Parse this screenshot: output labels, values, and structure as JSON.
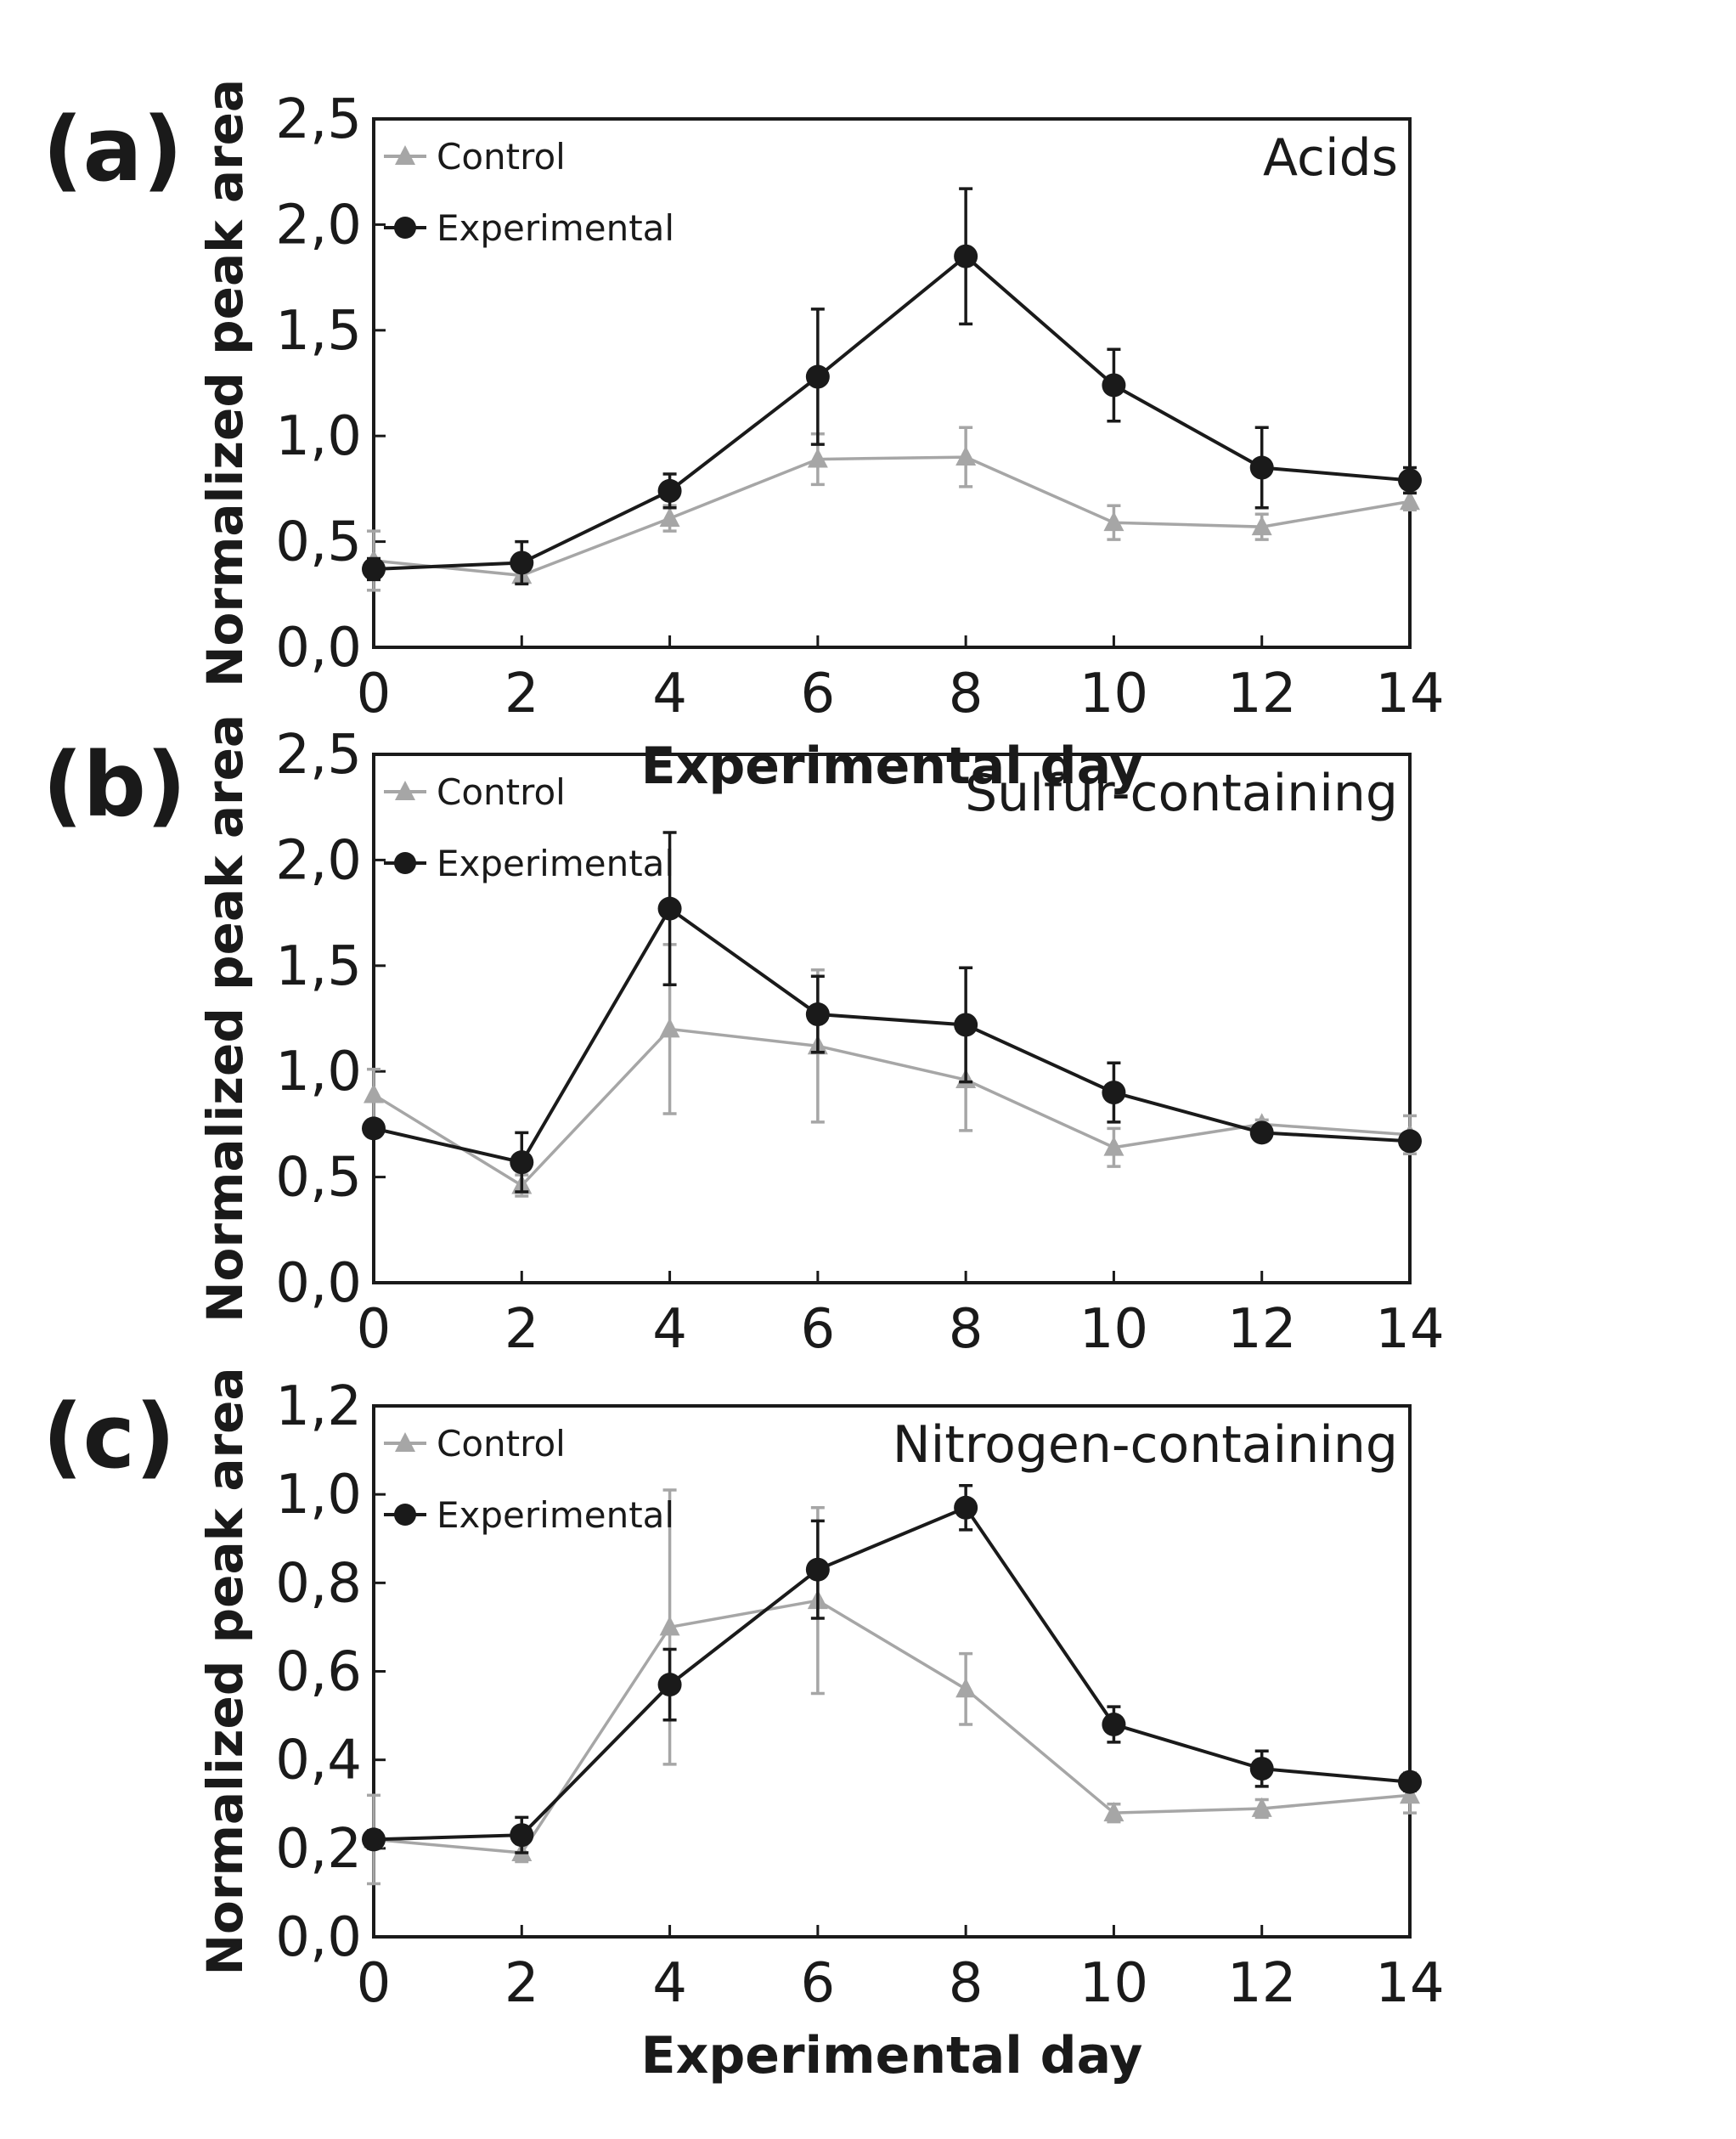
{
  "chart_data": [
    {
      "type": "line",
      "panel_label": "(a)",
      "title": "Acids",
      "xlabel": "Experimental day",
      "ylabel": "Normalized peak area",
      "x": [
        0,
        2,
        4,
        6,
        8,
        10,
        12,
        14
      ],
      "x_ticks": [
        "0",
        "2",
        "4",
        "6",
        "8",
        "10",
        "12",
        "14"
      ],
      "xlim": [
        0,
        14
      ],
      "ylim": [
        0,
        2.5
      ],
      "y_ticks": [
        "0,0",
        "0,5",
        "1,0",
        "1,5",
        "2,0",
        "2,5"
      ],
      "y_tick_values": [
        0,
        0.5,
        1.0,
        1.5,
        2.0,
        2.5
      ],
      "legend": "top-left",
      "series": [
        {
          "name": "Control",
          "color": "#a6a6a6",
          "marker": "triangle",
          "values": [
            0.41,
            0.34,
            0.61,
            0.89,
            0.9,
            0.59,
            0.57,
            0.69
          ],
          "errors": [
            0.14,
            0.03,
            0.06,
            0.12,
            0.14,
            0.08,
            0.06,
            0.04
          ]
        },
        {
          "name": "Experimental",
          "color": "#1a1a1a",
          "marker": "circle",
          "values": [
            0.37,
            0.4,
            0.74,
            1.28,
            1.85,
            1.24,
            0.85,
            0.79
          ],
          "errors": [
            0.05,
            0.1,
            0.08,
            0.32,
            0.32,
            0.17,
            0.19,
            0.06
          ]
        }
      ]
    },
    {
      "type": "line",
      "panel_label": "(b)",
      "title": "Sulfur-containing",
      "xlabel": "",
      "ylabel": "Normalized peak area",
      "x": [
        0,
        2,
        4,
        6,
        8,
        10,
        12,
        14
      ],
      "x_ticks": [
        "0",
        "2",
        "4",
        "6",
        "8",
        "10",
        "12",
        "14"
      ],
      "xlim": [
        0,
        14
      ],
      "ylim": [
        0,
        2.5
      ],
      "y_ticks": [
        "0,0",
        "0,5",
        "1,0",
        "1,5",
        "2,0",
        "2,5"
      ],
      "y_tick_values": [
        0,
        0.5,
        1.0,
        1.5,
        2.0,
        2.5
      ],
      "legend": "top-left",
      "series": [
        {
          "name": "Control",
          "color": "#a6a6a6",
          "marker": "triangle",
          "values": [
            0.89,
            0.46,
            1.2,
            1.12,
            0.96,
            0.64,
            0.75,
            0.7
          ],
          "errors": [
            0.12,
            0.05,
            0.4,
            0.36,
            0.24,
            0.09,
            0.02,
            0.09
          ]
        },
        {
          "name": "Experimental",
          "color": "#1a1a1a",
          "marker": "circle",
          "values": [
            0.73,
            0.57,
            1.77,
            1.27,
            1.22,
            0.9,
            0.71,
            0.67
          ],
          "errors": [
            0.04,
            0.14,
            0.36,
            0.18,
            0.27,
            0.14,
            0.02,
            0.03
          ]
        }
      ]
    },
    {
      "type": "line",
      "panel_label": "(c)",
      "title": "Nitrogen-containing",
      "xlabel": "Experimental day",
      "ylabel": "Normalized peak area",
      "x": [
        0,
        2,
        4,
        6,
        8,
        10,
        12,
        14
      ],
      "x_ticks": [
        "0",
        "2",
        "4",
        "6",
        "8",
        "10",
        "12",
        "14"
      ],
      "xlim": [
        0,
        14
      ],
      "ylim": [
        0,
        1.2
      ],
      "y_ticks": [
        "0,0",
        "0,2",
        "0,4",
        "0,6",
        "0,8",
        "1,0",
        "1,2"
      ],
      "y_tick_values": [
        0,
        0.2,
        0.4,
        0.6,
        0.8,
        1.0,
        1.2
      ],
      "legend": "top-left",
      "series": [
        {
          "name": "Control",
          "color": "#a6a6a6",
          "marker": "triangle",
          "values": [
            0.22,
            0.19,
            0.7,
            0.76,
            0.56,
            0.28,
            0.29,
            0.32
          ],
          "errors": [
            0.1,
            0.02,
            0.31,
            0.21,
            0.08,
            0.02,
            0.02,
            0.04
          ]
        },
        {
          "name": "Experimental",
          "color": "#1a1a1a",
          "marker": "circle",
          "values": [
            0.22,
            0.23,
            0.57,
            0.83,
            0.97,
            0.48,
            0.38,
            0.35
          ],
          "errors": [
            0.02,
            0.04,
            0.08,
            0.11,
            0.05,
            0.04,
            0.04,
            0.02
          ]
        }
      ]
    }
  ]
}
